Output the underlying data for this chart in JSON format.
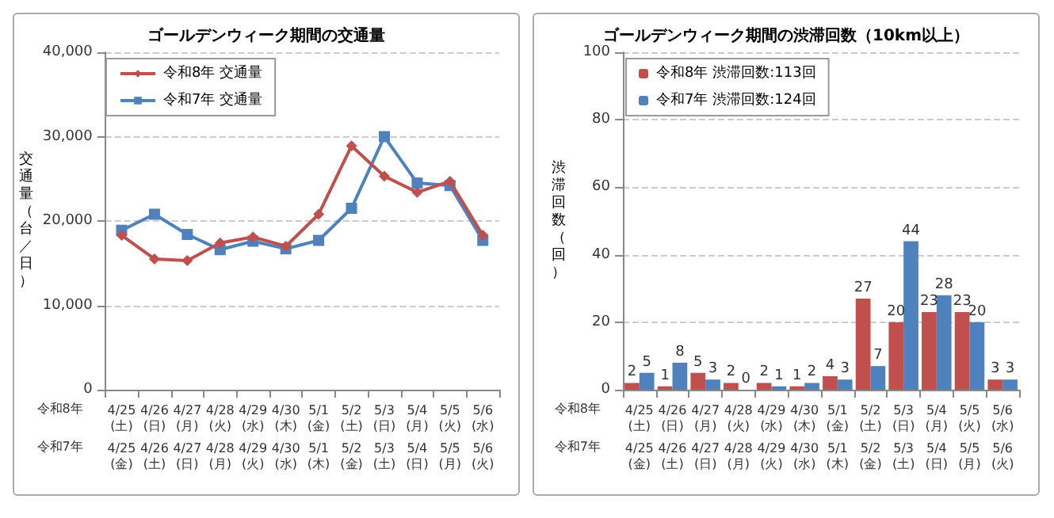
{
  "chart_data": [
    {
      "type": "line",
      "title": "ゴールデンウィーク期間の交通量",
      "ylabel": "交通量（台／日）",
      "categories": [
        "4/25\n(土)",
        "4/26\n(日)",
        "4/27\n(月)",
        "4/28\n(火)",
        "4/29\n(水)",
        "4/30\n(木)",
        "5/1\n(金)",
        "5/2\n(土)",
        "5/3\n(日)",
        "5/4\n(月)",
        "5/5\n(火)",
        "5/6\n(水)"
      ],
      "annotations": [
        "令和8年",
        "令和7年",
        "4/25\n(金)",
        "4/26\n(土)",
        "4/27\n(日)",
        "4/28\n(月)",
        "4/29\n(火)",
        "4/30\n(水)",
        "5/1\n(木)",
        "5/2\n(金)",
        "5/3\n(土)",
        "5/4\n(日)",
        "5/5\n(月)",
        "5/6\n(火)"
      ],
      "series": [
        {
          "name": "令和8年 交通量",
          "color": "#c0504d",
          "marker": "diamond",
          "values": [
            18300,
            15500,
            15300,
            17400,
            18100,
            17000,
            20800,
            28900,
            25300,
            23400,
            24700,
            18300
          ]
        },
        {
          "name": "令和7年 交通量",
          "color": "#4f81bd",
          "marker": "square",
          "values": [
            18900,
            20800,
            18400,
            16600,
            17600,
            16700,
            17700,
            21500,
            30000,
            24500,
            24200,
            17700
          ]
        }
      ],
      "ylim": [
        0,
        40000
      ],
      "yticks": [
        {
          "value": 0,
          "label": "0"
        },
        {
          "value": 10000,
          "label": "10,000"
        },
        {
          "value": 20000,
          "label": "20,000"
        },
        {
          "value": 30000,
          "label": "30,000"
        },
        {
          "value": 40000,
          "label": "40,000"
        }
      ],
      "grid": "y",
      "legend": "top left"
    },
    {
      "type": "bar",
      "title": "ゴールデンウィーク期間の渋滞回数（10km以上）",
      "ylabel": "渋滞回数（回）",
      "categories": [
        "4/25\n(土)",
        "4/26\n(日)",
        "4/27\n(月)",
        "4/28\n(火)",
        "4/29\n(水)",
        "4/30\n(木)",
        "5/1\n(金)",
        "5/2\n(土)",
        "5/3\n(日)",
        "5/4\n(月)",
        "5/5\n(火)",
        "5/6\n(水)"
      ],
      "annotations": [
        "令和8年",
        "令和7年",
        "4/25\n(金)",
        "4/26\n(土)",
        "4/27\n(日)",
        "4/28\n(月)",
        "4/29\n(火)",
        "4/30\n(水)",
        "5/1\n(木)",
        "5/2\n(金)",
        "5/3\n(土)",
        "5/4\n(日)",
        "5/5\n(月)",
        "5/6\n(火)"
      ],
      "series": [
        {
          "name": "令和8年 渋滞回数:113回",
          "color": "#c0504d",
          "values": [
            2,
            1,
            5,
            2,
            2,
            1,
            4,
            27,
            20,
            23,
            23,
            3
          ]
        },
        {
          "name": "令和7年 渋滞回数:124回",
          "color": "#4f81bd",
          "values": [
            5,
            8,
            3,
            0,
            1,
            2,
            3,
            7,
            44,
            28,
            20,
            3
          ]
        }
      ],
      "ylim": [
        0,
        100
      ],
      "yticks": [
        0,
        20,
        40,
        60,
        80,
        100
      ],
      "grid": "y",
      "legend": "top left",
      "data_labels": true
    }
  ]
}
